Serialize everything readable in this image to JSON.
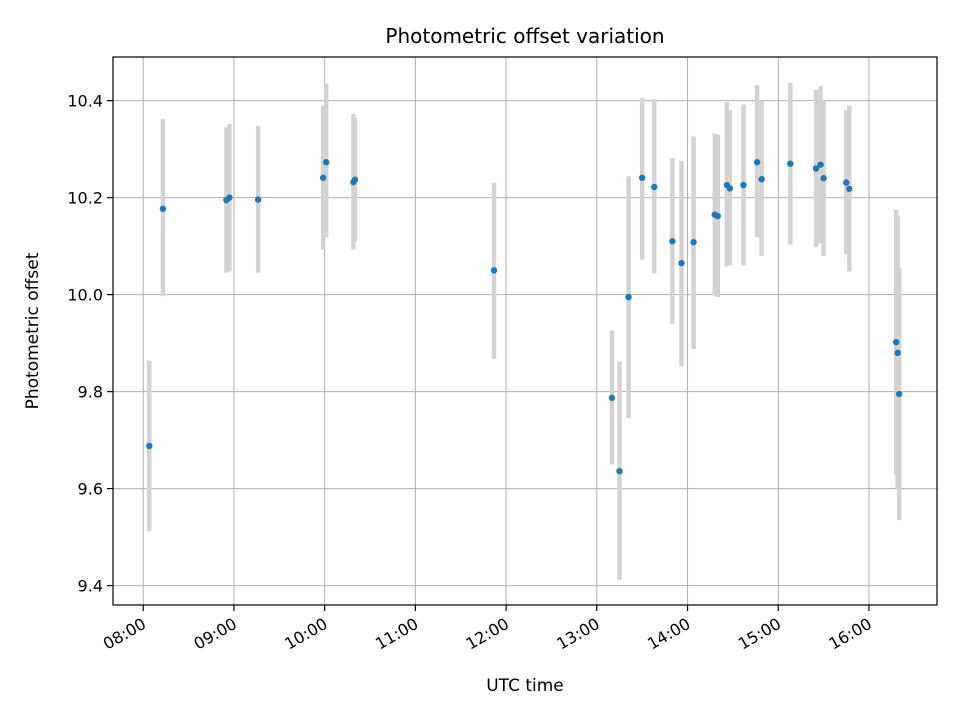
{
  "chart_data": {
    "type": "scatter",
    "title": "Photometric offset variation",
    "xlabel": "UTC time",
    "ylabel": "Photometric offset",
    "xlim": [
      "07:40",
      "16:45"
    ],
    "ylim": [
      9.36,
      10.49
    ],
    "x_ticks": [
      "08:00",
      "09:00",
      "10:00",
      "11:00",
      "12:00",
      "13:00",
      "14:00",
      "15:00",
      "16:00"
    ],
    "y_ticks": [
      "9.4",
      "9.6",
      "9.8",
      "10.0",
      "10.2",
      "10.4"
    ],
    "grid": true,
    "legend": "none",
    "point_color": "#1f77b4",
    "errorbar_color": "#d3d3d3",
    "points": [
      {
        "x": "08:04",
        "y": 9.688,
        "yerr_low": 9.512,
        "yerr_high": 9.864
      },
      {
        "x": "08:13",
        "y": 10.177,
        "yerr_low": 9.997,
        "yerr_high": 10.362
      },
      {
        "x": "08:55",
        "y": 10.195,
        "yerr_low": 10.045,
        "yerr_high": 10.345
      },
      {
        "x": "08:57",
        "y": 10.2,
        "yerr_low": 10.048,
        "yerr_high": 10.352
      },
      {
        "x": "09:16",
        "y": 10.196,
        "yerr_low": 10.045,
        "yerr_high": 10.348
      },
      {
        "x": "09:59",
        "y": 10.241,
        "yerr_low": 10.093,
        "yerr_high": 10.39
      },
      {
        "x": "10:01",
        "y": 10.273,
        "yerr_low": 10.118,
        "yerr_high": 10.435
      },
      {
        "x": "10:19",
        "y": 10.232,
        "yerr_low": 10.092,
        "yerr_high": 10.372
      },
      {
        "x": "10:20",
        "y": 10.237,
        "yerr_low": 10.11,
        "yerr_high": 10.365
      },
      {
        "x": "11:52",
        "y": 10.05,
        "yerr_low": 9.868,
        "yerr_high": 10.231
      },
      {
        "x": "13:10",
        "y": 9.787,
        "yerr_low": 9.65,
        "yerr_high": 9.926
      },
      {
        "x": "13:15",
        "y": 9.636,
        "yerr_low": 9.412,
        "yerr_high": 9.862
      },
      {
        "x": "13:21",
        "y": 9.995,
        "yerr_low": 9.746,
        "yerr_high": 10.244
      },
      {
        "x": "13:30",
        "y": 10.241,
        "yerr_low": 10.072,
        "yerr_high": 10.406
      },
      {
        "x": "13:38",
        "y": 10.222,
        "yerr_low": 10.044,
        "yerr_high": 10.403
      },
      {
        "x": "13:50",
        "y": 10.11,
        "yerr_low": 9.94,
        "yerr_high": 10.281
      },
      {
        "x": "13:56",
        "y": 10.065,
        "yerr_low": 9.852,
        "yerr_high": 10.276
      },
      {
        "x": "14:04",
        "y": 10.108,
        "yerr_low": 9.888,
        "yerr_high": 10.326
      },
      {
        "x": "14:18",
        "y": 10.165,
        "yerr_low": 9.998,
        "yerr_high": 10.332
      },
      {
        "x": "14:20",
        "y": 10.162,
        "yerr_low": 9.995,
        "yerr_high": 10.33
      },
      {
        "x": "14:26",
        "y": 10.226,
        "yerr_low": 10.058,
        "yerr_high": 10.397
      },
      {
        "x": "14:28",
        "y": 10.219,
        "yerr_low": 10.06,
        "yerr_high": 10.381
      },
      {
        "x": "14:37",
        "y": 10.226,
        "yerr_low": 10.06,
        "yerr_high": 10.392
      },
      {
        "x": "14:46",
        "y": 10.273,
        "yerr_low": 10.118,
        "yerr_high": 10.432
      },
      {
        "x": "14:49",
        "y": 10.238,
        "yerr_low": 10.08,
        "yerr_high": 10.4
      },
      {
        "x": "15:08",
        "y": 10.27,
        "yerr_low": 10.103,
        "yerr_high": 10.437
      },
      {
        "x": "15:25",
        "y": 10.26,
        "yerr_low": 10.098,
        "yerr_high": 10.422
      },
      {
        "x": "15:28",
        "y": 10.268,
        "yerr_low": 10.105,
        "yerr_high": 10.43
      },
      {
        "x": "15:30",
        "y": 10.24,
        "yerr_low": 10.08,
        "yerr_high": 10.4
      },
      {
        "x": "15:45",
        "y": 10.231,
        "yerr_low": 10.083,
        "yerr_high": 10.38
      },
      {
        "x": "15:47",
        "y": 10.218,
        "yerr_low": 10.048,
        "yerr_high": 10.39
      },
      {
        "x": "16:18",
        "y": 9.902,
        "yerr_low": 9.628,
        "yerr_high": 10.176
      },
      {
        "x": "16:19",
        "y": 9.88,
        "yerr_low": 9.598,
        "yerr_high": 10.162
      },
      {
        "x": "16:20",
        "y": 9.795,
        "yerr_low": 9.535,
        "yerr_high": 10.056
      }
    ]
  }
}
